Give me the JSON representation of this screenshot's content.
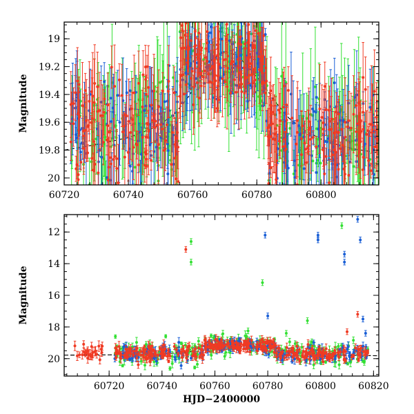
{
  "chart_data": [
    {
      "type": "scatter",
      "title": "",
      "xlabel": "",
      "ylabel": "Magnitude",
      "xlim": [
        60720,
        60818
      ],
      "ylim": [
        20.05,
        18.88
      ],
      "y_inverted": true,
      "xticks": [
        60720,
        60740,
        60760,
        60780,
        60800
      ],
      "yticks": [
        19,
        19.2,
        19.4,
        19.6,
        19.8,
        20
      ],
      "series_colors": {
        "blue": "#1a5fd6",
        "green": "#33e033",
        "red": "#f03a23"
      },
      "model_curve": {
        "color": "#000000",
        "x": [
          60720,
          60730,
          60740,
          60748,
          60754,
          60758,
          60762,
          60766,
          60770,
          60774,
          60778,
          60782,
          60786,
          60790,
          60795,
          60800,
          60805,
          60810,
          60818
        ],
        "y": [
          19.8,
          19.76,
          19.71,
          19.64,
          19.55,
          19.44,
          19.3,
          19.15,
          19.09,
          19.12,
          19.22,
          19.33,
          19.46,
          19.57,
          19.66,
          19.72,
          19.76,
          19.79,
          19.82
        ]
      },
      "density_profile": [
        {
          "x": [
            60722,
            60756
          ],
          "base": 19.65,
          "spread": 0.2
        },
        {
          "x": [
            60756,
            60783
          ],
          "base": 19.18,
          "spread": 0.14
        },
        {
          "x": [
            60783,
            60818
          ],
          "base": 19.72,
          "spread": 0.18
        }
      ]
    },
    {
      "type": "scatter",
      "title": "",
      "xlabel": "HJD−2400000",
      "ylabel": "Magnitude",
      "xlim": [
        60703,
        60822
      ],
      "ylim": [
        21.1,
        10.9
      ],
      "y_inverted": true,
      "xticks": [
        60720,
        60740,
        60760,
        60780,
        60800,
        60820
      ],
      "yticks": [
        12,
        14,
        16,
        18,
        20
      ],
      "model_curve": {
        "color": "#000000",
        "x": [
          60703,
          60720,
          60740,
          60755,
          60765,
          60775,
          60782,
          60790,
          60805,
          60822
        ],
        "y": [
          19.78,
          19.76,
          19.71,
          19.5,
          19.1,
          19.1,
          19.3,
          19.6,
          19.76,
          19.82
        ]
      },
      "outliers": [
        {
          "series": "red",
          "x": 60749,
          "y": 13.1
        },
        {
          "series": "green",
          "x": 60751,
          "y": 12.6
        },
        {
          "series": "green",
          "x": 60751,
          "y": 13.9
        },
        {
          "series": "green",
          "x": 60778,
          "y": 15.2
        },
        {
          "series": "blue",
          "x": 60779,
          "y": 12.2
        },
        {
          "series": "blue",
          "x": 60780,
          "y": 17.3
        },
        {
          "series": "green",
          "x": 60795,
          "y": 17.6
        },
        {
          "series": "blue",
          "x": 60799,
          "y": 12.2
        },
        {
          "series": "blue",
          "x": 60799,
          "y": 12.5
        },
        {
          "series": "green",
          "x": 60808,
          "y": 11.6
        },
        {
          "series": "blue",
          "x": 60809,
          "y": 13.4
        },
        {
          "series": "blue",
          "x": 60809,
          "y": 13.9
        },
        {
          "series": "blue",
          "x": 60814,
          "y": 11.2
        },
        {
          "series": "blue",
          "x": 60815,
          "y": 12.5
        },
        {
          "series": "red",
          "x": 60814,
          "y": 17.2
        },
        {
          "series": "blue",
          "x": 60816,
          "y": 17.5
        },
        {
          "series": "blue",
          "x": 60817,
          "y": 18.4
        },
        {
          "series": "green",
          "x": 60734,
          "y": 19.1
        },
        {
          "series": "green",
          "x": 60772,
          "y": 18.6
        },
        {
          "series": "green",
          "x": 60787,
          "y": 18.4
        },
        {
          "series": "red",
          "x": 60810,
          "y": 18.3
        }
      ],
      "early_segment": {
        "x": [
          60707,
          60718
        ],
        "base": 19.6,
        "spread": 0.25
      }
    }
  ]
}
